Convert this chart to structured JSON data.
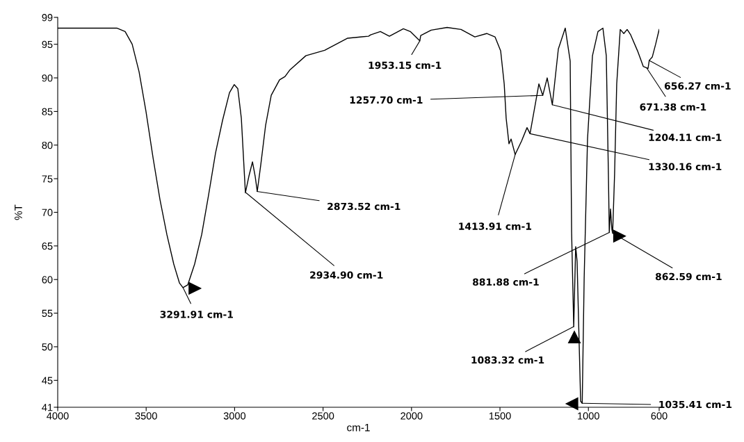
{
  "chart_data": {
    "type": "line",
    "xlabel": "cm-1",
    "ylabel": "%T",
    "xlim": [
      4000,
      600
    ],
    "ylim": [
      41,
      99
    ],
    "xticks": [
      4000,
      3500,
      3000,
      2500,
      2000,
      1500,
      1000,
      600
    ],
    "yticks": [
      41,
      45,
      50,
      55,
      60,
      65,
      70,
      75,
      80,
      85,
      90,
      95,
      99
    ],
    "x": [
      4000,
      3666,
      3619,
      3579,
      3540,
      3501,
      3461,
      3422,
      3383,
      3344,
      3312,
      3292,
      3265,
      3226,
      3186,
      3147,
      3108,
      3068,
      3029,
      3002,
      2982,
      2962,
      2939,
      2919,
      2899,
      2884,
      2872,
      2852,
      2825,
      2793,
      2746,
      2715,
      2687,
      2597,
      2491,
      2361,
      2282,
      2243,
      2231,
      2176,
      2125,
      2046,
      2007,
      1953,
      1948,
      1889,
      1799,
      1720,
      1642,
      1575,
      1528,
      1496,
      1476,
      1465,
      1449,
      1437,
      1414,
      1378,
      1347,
      1330,
      1280,
      1258,
      1233,
      1204,
      1170,
      1131,
      1103,
      1095,
      1083,
      1072,
      1064,
      1044,
      1035,
      1024,
      1005,
      977,
      946,
      918,
      899,
      887,
      882,
      875,
      867,
      863,
      852,
      840,
      820,
      800,
      781,
      761,
      722,
      690,
      671,
      663,
      656,
      639,
      620,
      600
    ],
    "series": [
      {
        "color": "#000000",
        "line_style": "solid",
        "values": [
          97.4,
          97.4,
          96.9,
          95.0,
          90.9,
          85.0,
          78.1,
          71.9,
          66.7,
          62.3,
          59.5,
          58.8,
          59.2,
          62.3,
          66.7,
          72.6,
          78.8,
          83.7,
          87.8,
          89.0,
          88.4,
          84.0,
          72.9,
          75.4,
          77.5,
          75.4,
          73.1,
          77.1,
          82.9,
          87.4,
          89.7,
          90.2,
          91.2,
          93.3,
          94.1,
          95.9,
          96.1,
          96.2,
          96.4,
          96.9,
          96.2,
          97.3,
          96.9,
          95.5,
          96.3,
          97.1,
          97.5,
          97.2,
          96.1,
          96.6,
          96.1,
          94.0,
          89.1,
          84.0,
          80.2,
          80.9,
          78.6,
          80.6,
          82.6,
          81.7,
          89.1,
          87.4,
          90.0,
          86.0,
          94.3,
          97.4,
          92.5,
          67.1,
          53.0,
          64.9,
          62.7,
          41.9,
          41.6,
          60.2,
          80.9,
          93.3,
          96.9,
          97.4,
          93.3,
          75.7,
          67.0,
          70.5,
          67.4,
          66.9,
          75.7,
          89.1,
          97.2,
          96.6,
          97.2,
          96.4,
          94.0,
          91.7,
          91.5,
          91.4,
          92.6,
          93.1,
          95.0,
          97.2
        ]
      }
    ],
    "annotations": [
      {
        "text": "3291.91 cm-1",
        "x": 3291.91,
        "y": 58.8
      },
      {
        "text": "2934.90 cm-1",
        "x": 2934.9,
        "y": 72.9
      },
      {
        "text": "2873.52 cm-1",
        "x": 2873.52,
        "y": 73.1
      },
      {
        "text": "1953.15 cm-1",
        "x": 1953.15,
        "y": 95.5
      },
      {
        "text": "1257.70 cm-1",
        "x": 1257.7,
        "y": 87.4
      },
      {
        "text": "1413.91 cm-1",
        "x": 1413.91,
        "y": 78.6
      },
      {
        "text": "1330.16 cm-1",
        "x": 1330.16,
        "y": 81.7
      },
      {
        "text": "1204.11 cm-1",
        "x": 1204.11,
        "y": 86.0
      },
      {
        "text": "671.38 cm-1",
        "x": 671.38,
        "y": 91.5
      },
      {
        "text": "656.27 cm-1",
        "x": 656.27,
        "y": 92.6
      },
      {
        "text": "881.88 cm-1",
        "x": 881.88,
        "y": 67.0
      },
      {
        "text": "862.59 cm-1",
        "x": 862.59,
        "y": 66.9
      },
      {
        "text": "1083.32 cm-1",
        "x": 1083.32,
        "y": 53.0
      },
      {
        "text": "1035.41 cm-1",
        "x": 1035.41,
        "y": 41.6
      }
    ]
  }
}
